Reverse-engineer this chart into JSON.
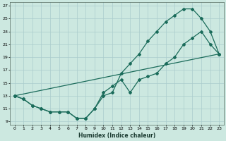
{
  "xlabel": "Humidex (Indice chaleur)",
  "bg_color": "#cce8e0",
  "grid_color": "#aacccc",
  "line_color": "#1a6b5a",
  "xlim": [
    -0.5,
    23.5
  ],
  "ylim": [
    8.5,
    27.5
  ],
  "xticks": [
    0,
    1,
    2,
    3,
    4,
    5,
    6,
    7,
    8,
    9,
    10,
    11,
    12,
    13,
    14,
    15,
    16,
    17,
    18,
    19,
    20,
    21,
    22,
    23
  ],
  "yticks": [
    9,
    11,
    13,
    15,
    17,
    19,
    21,
    23,
    25,
    27
  ],
  "curve1_x": [
    0,
    1,
    2,
    3,
    4,
    5,
    6,
    7,
    8,
    9,
    10,
    11,
    12,
    13,
    14,
    15,
    16,
    17,
    18,
    19,
    20,
    21,
    22,
    23
  ],
  "curve1_y": [
    13,
    12.5,
    11.5,
    11,
    10.5,
    10.5,
    10.5,
    9.5,
    9.5,
    11,
    13,
    13.5,
    16.5,
    18,
    19.5,
    21.5,
    23,
    24.5,
    25.5,
    26.5,
    26.5,
    25,
    23,
    19.5
  ],
  "curve2_x": [
    0,
    1,
    2,
    3,
    4,
    5,
    6,
    7,
    8,
    9,
    10,
    11,
    12,
    13,
    14,
    15,
    16,
    17,
    18,
    19,
    20,
    21,
    22,
    23
  ],
  "curve2_y": [
    13,
    12.5,
    11.5,
    11,
    10.5,
    10.5,
    10.5,
    9.5,
    9.5,
    11,
    13.5,
    14.5,
    15.5,
    13.5,
    15.5,
    16,
    16.5,
    18,
    19,
    21,
    22,
    23,
    21,
    19.5
  ],
  "curve3_x": [
    0,
    23
  ],
  "curve3_y": [
    13,
    19.5
  ]
}
